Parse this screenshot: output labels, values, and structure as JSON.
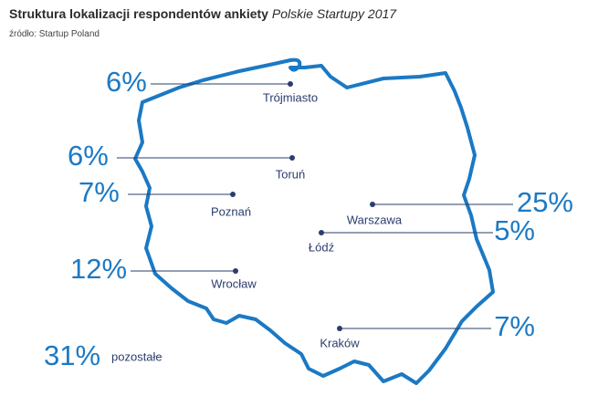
{
  "header": {
    "title": "Struktura lokalizacji respondentów ankiety",
    "title_italic": "Polskie Startupy 2017",
    "source": "źródło: Startup Poland"
  },
  "cities": [
    {
      "name": "Trójmiasto",
      "share": "6%"
    },
    {
      "name": "Toruń",
      "share": "6%"
    },
    {
      "name": "Poznań",
      "share": "7%"
    },
    {
      "name": "Warszawa",
      "share": "25%"
    },
    {
      "name": "Łódź",
      "share": "5%"
    },
    {
      "name": "Wrocław",
      "share": "12%"
    },
    {
      "name": "Kraków",
      "share": "7%"
    }
  ],
  "other": {
    "share": "31%",
    "label": "pozostałe"
  }
}
